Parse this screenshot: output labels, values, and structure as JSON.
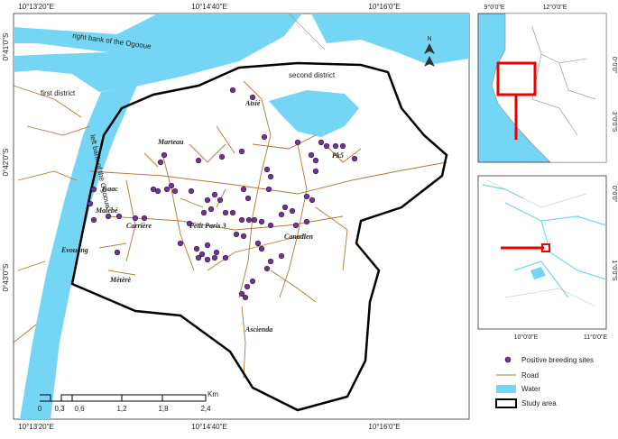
{
  "main_map": {
    "graticule": {
      "top": [
        "10°13'20\"E",
        "10°14'40\"E",
        "10°16'0\"E"
      ],
      "bottom": [
        "10°13'20\"E",
        "10°14'40\"E",
        "10°16'0\"E"
      ],
      "left": [
        "0°41'0\"S",
        "0°42'0\"S",
        "0°43'0\"S"
      ]
    },
    "rivers": [
      "right bank of the Ogooue",
      "left bank of the Ogooue"
    ],
    "districts": [
      "first district",
      "second district"
    ],
    "places": [
      "Atsié",
      "Marteau",
      "Pk5",
      "Isaac",
      "Malébé",
      "Carrière",
      "Petit Paris 3",
      "Canadien",
      "Evouang",
      "Mètèrè",
      "Ascienda"
    ],
    "scale_bar": {
      "labels": [
        "0",
        "0,3",
        "0,6",
        "1,2",
        "1,8",
        "2,4"
      ],
      "unit": "Km"
    },
    "north": "N"
  },
  "inset_country": {
    "top": [
      "9°0'0\"E",
      "12°0'0\"E"
    ],
    "right": [
      "0°0'0\"",
      "3°0'0\"S"
    ]
  },
  "inset_region": {
    "bottom": [
      "10°0'0\"E",
      "11°0'0\"E"
    ],
    "right": [
      "0°0'0\"",
      "1°0'0\"S"
    ]
  },
  "legend": [
    "Positive breeding sites",
    "Road",
    "Water",
    "Study area"
  ]
}
